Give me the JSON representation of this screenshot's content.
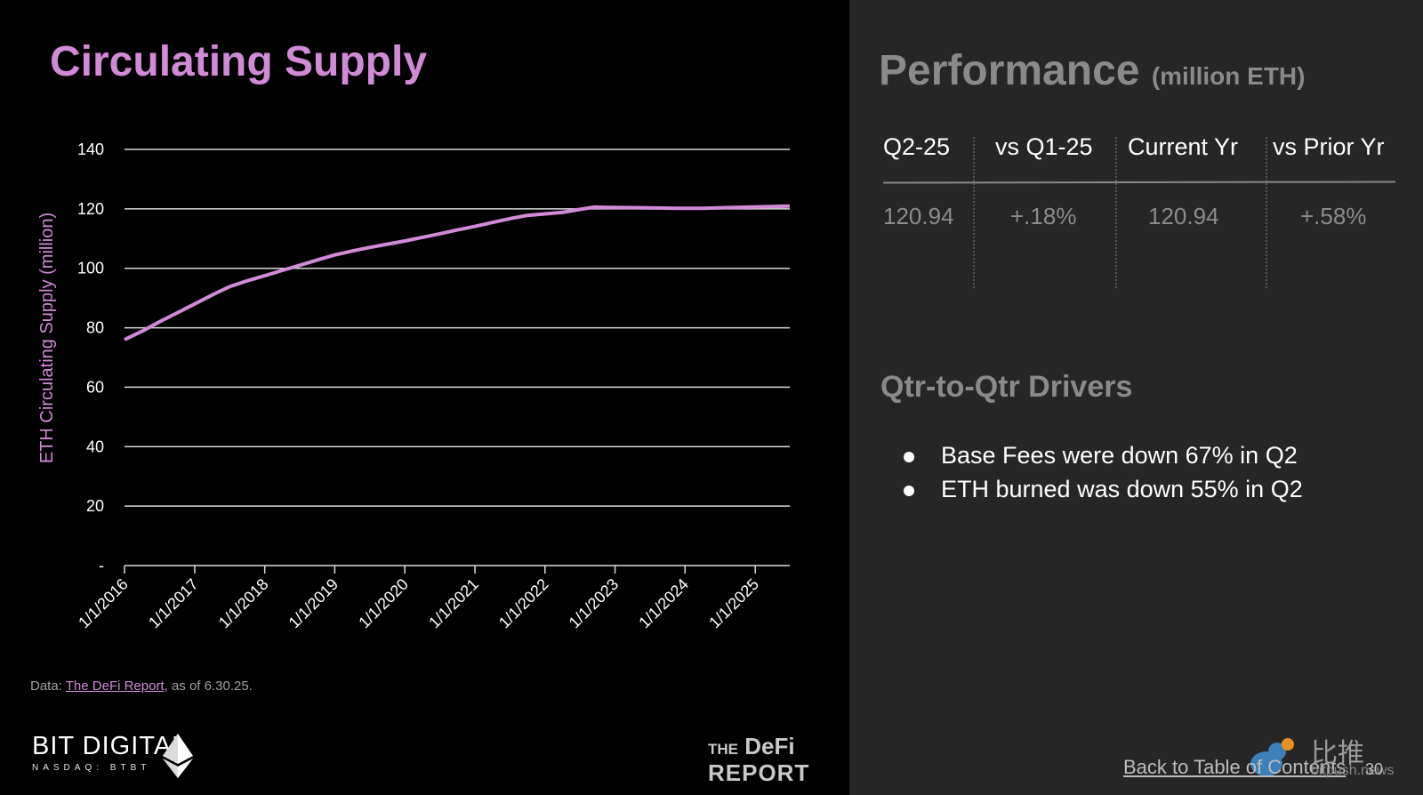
{
  "left": {
    "title": "Circulating Supply",
    "source_prefix": "Data: ",
    "source_link": "The DeFi Report",
    "source_suffix": ", as of 6.30.25.",
    "bit_logo_name": "BIT DIGITAL",
    "bit_logo_sub": "NASDAQ: BTBT",
    "defi_logo_line1_small": "THE",
    "defi_logo_line1": "DeFi",
    "defi_logo_line2": "REPORT"
  },
  "chart_data": {
    "type": "line",
    "title": "Circulating Supply",
    "xlabel": "",
    "ylabel": "ETH Circulating Supply (million)",
    "ylim": [
      0,
      140
    ],
    "y_ticks": [
      "-",
      "20",
      "40",
      "60",
      "80",
      "100",
      "120",
      "140"
    ],
    "x_tick_labels": [
      "1/1/2016",
      "1/1/2017",
      "1/1/2018",
      "1/1/2019",
      "1/1/2020",
      "1/1/2021",
      "1/1/2022",
      "1/1/2023",
      "1/1/2024",
      "1/1/2025"
    ],
    "x_range": [
      "2016-01-01",
      "2025-06-30"
    ],
    "grid": true,
    "color": "#d08ad6",
    "series": [
      {
        "x": [
          "2016-01-01",
          "2016-04-01",
          "2016-07-01",
          "2016-10-01",
          "2017-01-01",
          "2017-04-01",
          "2017-07-01",
          "2017-10-01",
          "2018-01-01",
          "2018-04-01",
          "2018-07-01",
          "2018-10-01",
          "2019-01-01",
          "2019-04-01",
          "2019-07-01",
          "2019-10-01",
          "2020-01-01",
          "2020-04-01",
          "2020-07-01",
          "2020-10-01",
          "2021-01-01",
          "2021-04-01",
          "2021-07-01",
          "2021-10-01",
          "2022-01-01",
          "2022-04-01",
          "2022-07-01",
          "2022-09-15",
          "2022-12-01",
          "2023-04-01",
          "2023-08-01",
          "2023-12-01",
          "2024-04-01",
          "2024-08-01",
          "2024-12-01",
          "2025-04-01",
          "2025-06-30"
        ],
        "values": [
          76.0,
          78.8,
          82.0,
          85.0,
          88.0,
          91.0,
          93.8,
          95.8,
          97.5,
          99.3,
          101.0,
          102.8,
          104.5,
          105.8,
          107.0,
          108.1,
          109.2,
          110.4,
          111.6,
          112.9,
          114.1,
          115.4,
          116.7,
          117.8,
          118.3,
          118.8,
          119.8,
          120.6,
          120.5,
          120.4,
          120.3,
          120.2,
          120.2,
          120.4,
          120.6,
          120.8,
          120.94
        ]
      }
    ]
  },
  "right": {
    "perf_title": "Performance",
    "perf_unit": "(million ETH)",
    "columns": [
      {
        "header": "Q2-25",
        "value": "120.94"
      },
      {
        "header": "vs Q1-25",
        "value": "+.18%"
      },
      {
        "header": "Current Yr",
        "value": "120.94"
      },
      {
        "header": "vs Prior Yr",
        "value": "+.58%"
      }
    ],
    "drivers_title": "Qtr-to-Qtr Drivers",
    "drivers": [
      "Base Fees were down 67% in Q2",
      "ETH burned was down 55% in Q2"
    ],
    "back_link": "Back to Table of Contents",
    "page_number": "30",
    "watermark_cn": "比推",
    "watermark_en": "bitpush.news"
  }
}
